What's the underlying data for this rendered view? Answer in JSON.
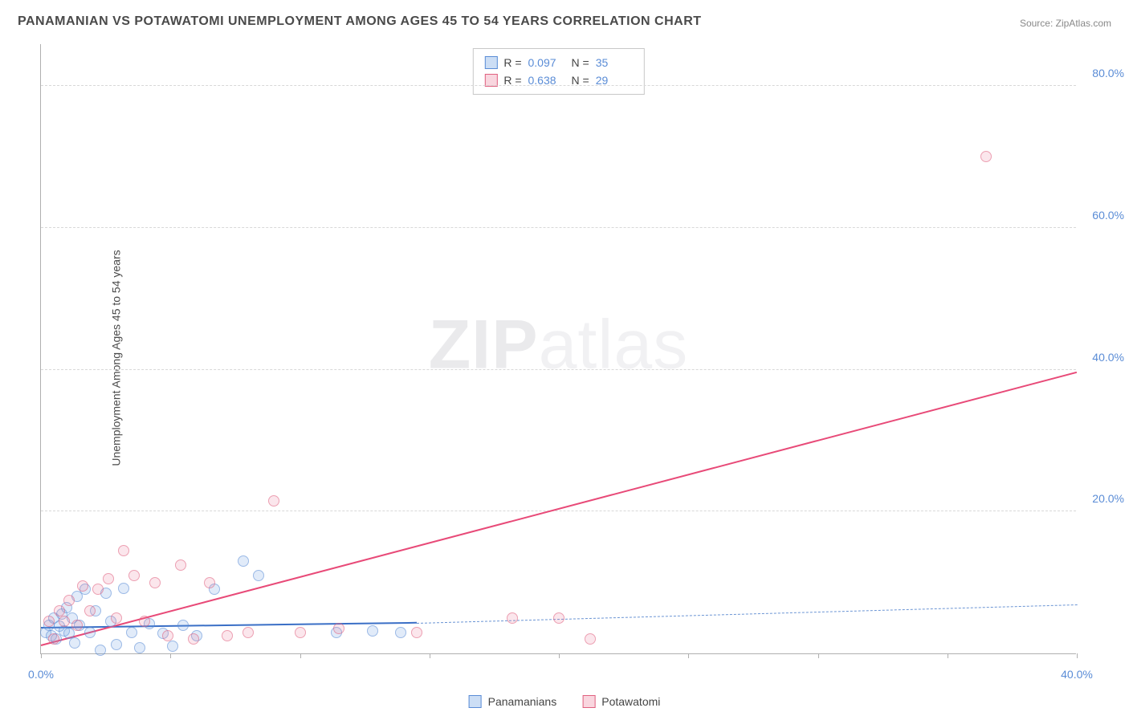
{
  "title": "PANAMANIAN VS POTAWATOMI UNEMPLOYMENT AMONG AGES 45 TO 54 YEARS CORRELATION CHART",
  "source_prefix": "Source: ",
  "source_name": "ZipAtlas.com",
  "ylabel": "Unemployment Among Ages 45 to 54 years",
  "watermark_bold": "ZIP",
  "watermark_rest": "atlas",
  "chart": {
    "type": "scatter",
    "xlim": [
      0,
      40
    ],
    "ylim": [
      0,
      86
    ],
    "x_ticks": [
      0,
      5,
      10,
      15,
      20,
      25,
      30,
      35,
      40
    ],
    "x_tick_labels": {
      "0": "0.0%",
      "40": "40.0%"
    },
    "y_ticks": [
      20,
      40,
      60,
      80
    ],
    "y_tick_labels": {
      "20": "20.0%",
      "40": "40.0%",
      "60": "60.0%",
      "80": "80.0%"
    },
    "gridline_color": "#d8d8d8",
    "background_color": "#ffffff",
    "axis_color": "#b0b0b0",
    "tick_label_color": "#5a8cd6",
    "marker_size": 14,
    "series": [
      {
        "name": "Panamanians",
        "fill": "rgba(110,160,225,0.35)",
        "stroke": "#5a8cd6",
        "R": "0.097",
        "N": "35",
        "trend": {
          "x1": 0,
          "y1": 3.5,
          "x2": 14.5,
          "y2": 4.2,
          "color": "#3a6fc6",
          "width": 2,
          "dash": false
        },
        "trend_ext": {
          "x1": 14.5,
          "y1": 4.2,
          "x2": 40,
          "y2": 6.8,
          "color": "#6a94d4",
          "width": 1.5,
          "dash": true
        },
        "points": [
          [
            0.2,
            3.0
          ],
          [
            0.3,
            4.0
          ],
          [
            0.4,
            2.5
          ],
          [
            0.5,
            5.0
          ],
          [
            0.6,
            2.0
          ],
          [
            0.7,
            3.8
          ],
          [
            0.8,
            5.5
          ],
          [
            0.9,
            3.2
          ],
          [
            1.0,
            6.5
          ],
          [
            1.1,
            2.8
          ],
          [
            1.2,
            5.0
          ],
          [
            1.3,
            1.5
          ],
          [
            1.4,
            8.0
          ],
          [
            1.5,
            4.0
          ],
          [
            1.7,
            9.0
          ],
          [
            1.9,
            3.0
          ],
          [
            2.1,
            6.0
          ],
          [
            2.3,
            0.5
          ],
          [
            2.5,
            8.5
          ],
          [
            2.7,
            4.5
          ],
          [
            2.9,
            1.2
          ],
          [
            3.2,
            9.2
          ],
          [
            3.5,
            3.0
          ],
          [
            3.8,
            0.8
          ],
          [
            4.2,
            4.2
          ],
          [
            4.7,
            2.8
          ],
          [
            5.1,
            1.0
          ],
          [
            5.5,
            4.0
          ],
          [
            6.0,
            2.5
          ],
          [
            6.7,
            9.0
          ],
          [
            7.8,
            13.0
          ],
          [
            8.4,
            11.0
          ],
          [
            11.4,
            3.0
          ],
          [
            12.8,
            3.2
          ],
          [
            13.9,
            3.0
          ]
        ]
      },
      {
        "name": "Potawatomi",
        "fill": "rgba(235,120,150,0.30)",
        "stroke": "#e0607f",
        "R": "0.638",
        "N": "29",
        "trend": {
          "x1": 0,
          "y1": 1.0,
          "x2": 40,
          "y2": 39.5,
          "color": "#e84a78",
          "width": 2,
          "dash": false
        },
        "points": [
          [
            0.3,
            4.5
          ],
          [
            0.5,
            2.0
          ],
          [
            0.7,
            6.0
          ],
          [
            0.9,
            4.5
          ],
          [
            1.1,
            7.5
          ],
          [
            1.4,
            4.0
          ],
          [
            1.6,
            9.5
          ],
          [
            1.9,
            6.0
          ],
          [
            2.2,
            9.0
          ],
          [
            2.6,
            10.5
          ],
          [
            2.9,
            5.0
          ],
          [
            3.2,
            14.5
          ],
          [
            3.6,
            11.0
          ],
          [
            4.0,
            4.5
          ],
          [
            4.4,
            10.0
          ],
          [
            4.9,
            2.5
          ],
          [
            5.4,
            12.5
          ],
          [
            5.9,
            2.0
          ],
          [
            6.5,
            10.0
          ],
          [
            7.2,
            2.5
          ],
          [
            8.0,
            3.0
          ],
          [
            9.0,
            21.5
          ],
          [
            10.0,
            3.0
          ],
          [
            11.5,
            3.5
          ],
          [
            14.5,
            3.0
          ],
          [
            18.2,
            5.0
          ],
          [
            20.0,
            5.0
          ],
          [
            21.2,
            2.0
          ],
          [
            36.5,
            70.0
          ]
        ]
      }
    ],
    "legend_bottom": [
      "Panamanians",
      "Potawatomi"
    ]
  }
}
